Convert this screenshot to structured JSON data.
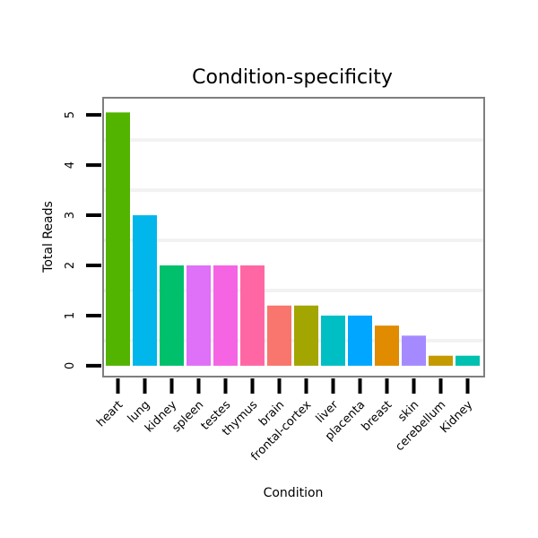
{
  "chart_data": {
    "type": "bar",
    "title": "Condition-specificity",
    "xlabel": "Condition",
    "ylabel": "Total Reads",
    "ylim": [
      -0.27,
      5.11
    ],
    "yticks": [
      0,
      1,
      2,
      3,
      4,
      5
    ],
    "grid": true,
    "categories": [
      "heart",
      "lung",
      "kidney",
      "spleen",
      "testes",
      "thymus",
      "brain",
      "frontal-cortex",
      "liver",
      "placenta",
      "breast",
      "skin",
      "cerebellum",
      "Kidney"
    ],
    "values": [
      5.05,
      3.0,
      2.0,
      2.0,
      2.0,
      2.0,
      1.2,
      1.2,
      1.0,
      1.0,
      0.8,
      0.6,
      0.2,
      0.2
    ],
    "colors": [
      "#53B400",
      "#00B6EB",
      "#00C06B",
      "#DF70F8",
      "#F564E3",
      "#FF67A4",
      "#F8766D",
      "#A3A500",
      "#00BFC4",
      "#00A6FF",
      "#E08B00",
      "#A58AFF",
      "#C49A00",
      "#00C0AF"
    ]
  }
}
